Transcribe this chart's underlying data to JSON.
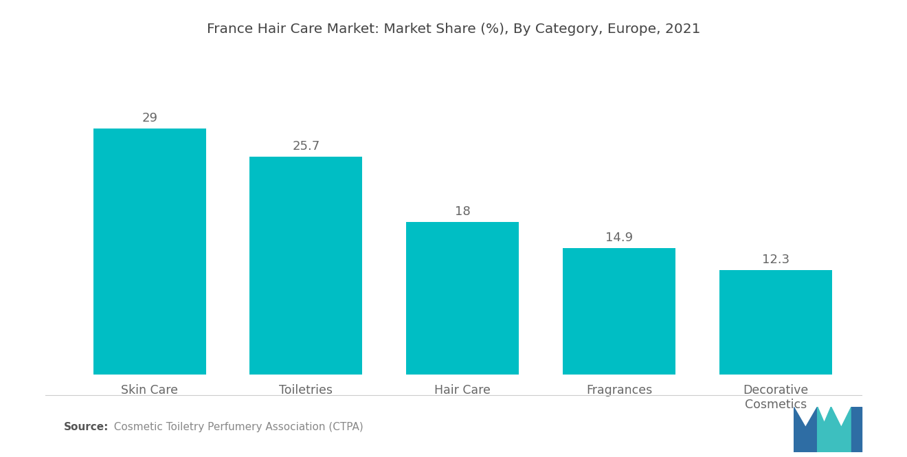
{
  "title": "France Hair Care Market: Market Share (%), By Category, Europe, 2021",
  "categories": [
    "Skin Care",
    "Toiletries",
    "Hair Care",
    "Fragrances",
    "Decorative\nCosmetics"
  ],
  "values": [
    29,
    25.7,
    18,
    14.9,
    12.3
  ],
  "bar_color": "#00BEC4",
  "background_color": "#ffffff",
  "title_fontsize": 14.5,
  "label_fontsize": 12.5,
  "value_fontsize": 13,
  "source_bold": "Source:",
  "source_rest": "  Cosmetic Toiletry Perfumery Association (CTPA)",
  "ylim": [
    0,
    35
  ],
  "bar_width": 0.72,
  "logo_blue": "#2E6DA4",
  "logo_teal": "#3DBFBF"
}
